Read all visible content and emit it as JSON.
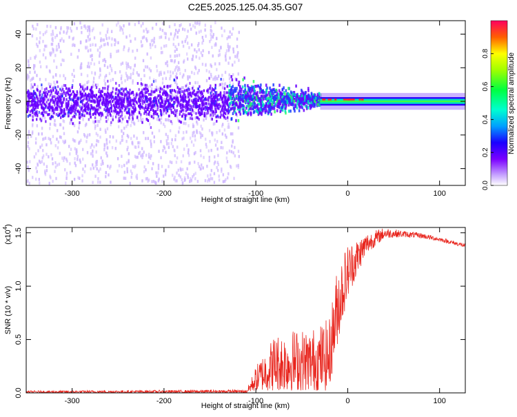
{
  "title": "C2E5.2025.125.04.35.G07",
  "colors": {
    "noise": "#6a00ff",
    "noise_light": "#cfb8ff",
    "core": "#00e0c0",
    "peak": "#ff2a2a",
    "line": "#e8241c"
  },
  "chart_data": [
    {
      "type": "heatmap",
      "xlabel": "Height of straight line (km)",
      "ylabel": "Frequency (Hz)",
      "xlim": [
        -350,
        128
      ],
      "ylim": [
        -50,
        48
      ],
      "xticks": [
        -300,
        -200,
        -100,
        0,
        100
      ],
      "yticks": [
        -40,
        -20,
        0,
        20,
        40
      ],
      "signal_band": {
        "x_start": -130,
        "x_end": 128,
        "freq_center": 0,
        "half_width_hz": 3
      },
      "noise_region": {
        "x_start": -350,
        "x_end": -130,
        "core_half_width_hz": 12,
        "spread_hz": 48
      },
      "colorbar": {
        "label": "Normalized spectral amplitude",
        "range": [
          0,
          1
        ],
        "ticks": [
          0.0,
          0.2,
          0.4,
          0.6,
          0.8
        ]
      }
    },
    {
      "type": "line",
      "xlabel": "Height of straight line (km)",
      "ylabel": "SNR (10 * v/v)",
      "scale_label": "(x10",
      "scale_exp": "4",
      "scale_close": ")",
      "xlim": [
        -350,
        128
      ],
      "ylim": [
        0,
        1.55
      ],
      "xticks": [
        -300,
        -200,
        -100,
        0,
        100
      ],
      "yticks": [
        0.0,
        0.5,
        1.0,
        1.5
      ],
      "envelope": {
        "x": [
          -350,
          -110,
          -100,
          -80,
          -60,
          -40,
          -20,
          -15,
          -10,
          0,
          20,
          40,
          60,
          80,
          100,
          128
        ],
        "upper": [
          0.02,
          0.03,
          0.25,
          0.55,
          0.6,
          0.6,
          0.7,
          1.0,
          1.25,
          1.4,
          1.5,
          1.55,
          1.52,
          1.5,
          1.46,
          1.4
        ],
        "lower": [
          0.0,
          0.0,
          0.02,
          0.02,
          0.02,
          0.02,
          0.02,
          0.3,
          0.5,
          0.9,
          1.3,
          1.45,
          1.46,
          1.45,
          1.42,
          1.36
        ]
      }
    }
  ]
}
